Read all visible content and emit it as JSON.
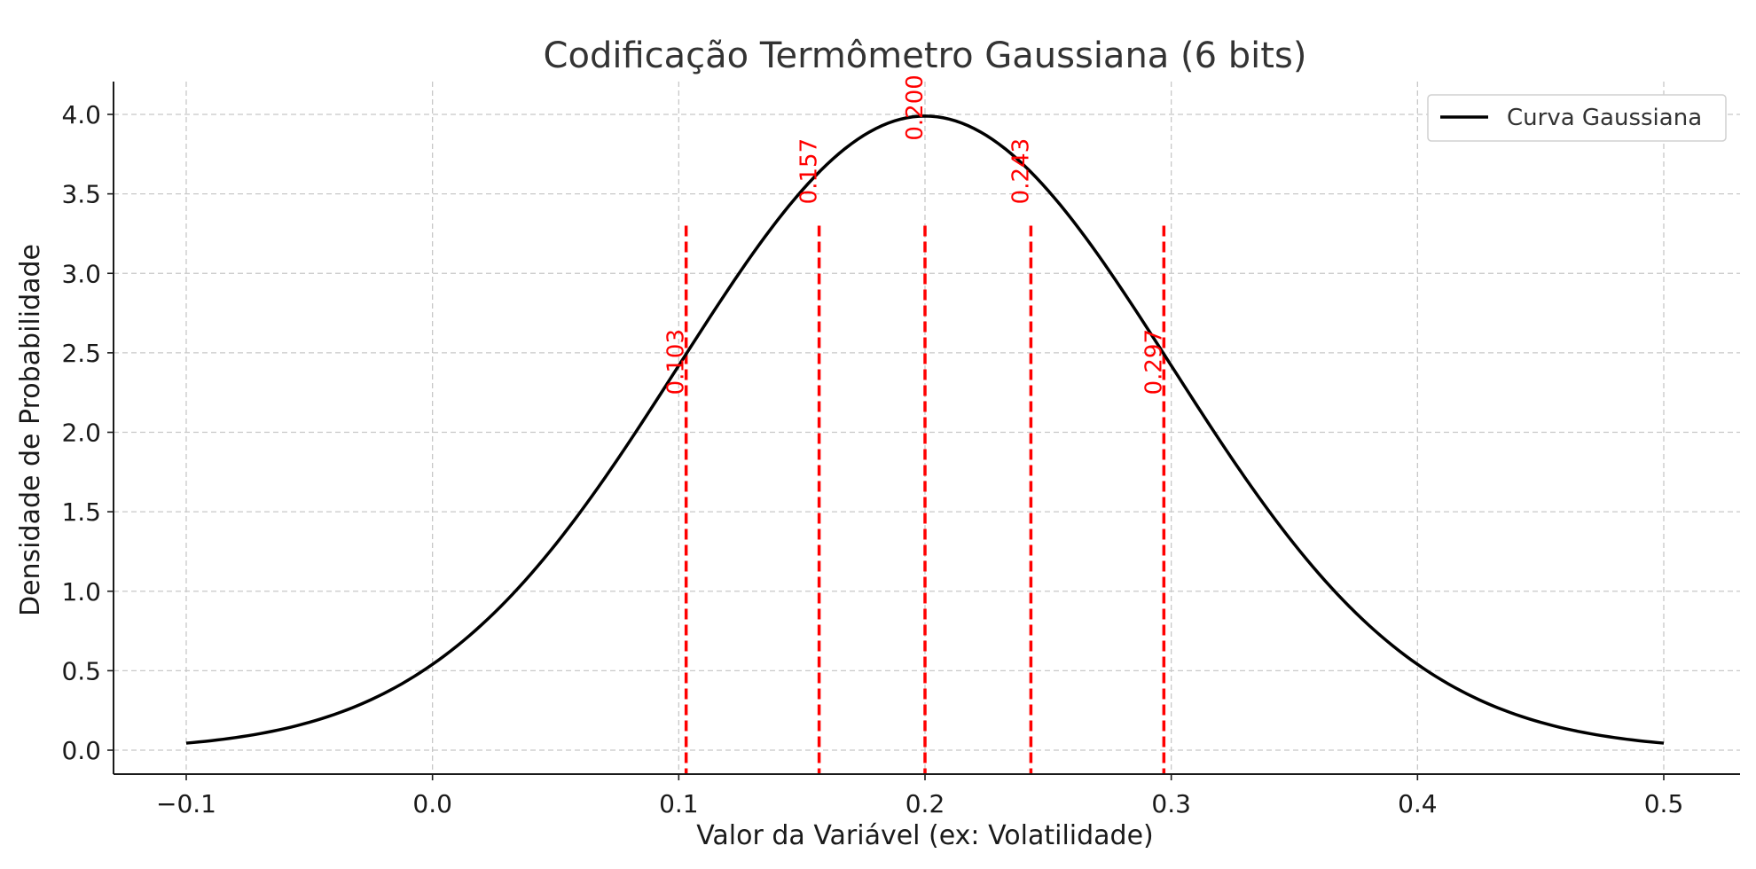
{
  "chart_data": {
    "type": "line",
    "title": "Codificação Termômetro Gaussiana (6 bits)",
    "xlabel": "Valor da Variável (ex: Volatilidade)",
    "ylabel": "Densidade de Probabilidade",
    "xlim": [
      -0.13,
      0.53
    ],
    "ylim": [
      -0.15,
      4.2
    ],
    "grid": true,
    "legend_position": "top-right",
    "x_ticks": [
      -0.1,
      0.0,
      0.1,
      0.2,
      0.3,
      0.4,
      0.5
    ],
    "x_tick_labels": [
      "−0.1",
      "0.0",
      "0.1",
      "0.2",
      "0.3",
      "0.4",
      "0.5"
    ],
    "y_ticks": [
      0.0,
      0.5,
      1.0,
      1.5,
      2.0,
      2.5,
      3.0,
      3.5,
      4.0
    ],
    "y_tick_labels": [
      "0.0",
      "0.5",
      "1.0",
      "1.5",
      "2.0",
      "2.5",
      "3.0",
      "3.5",
      "4.0"
    ],
    "series": [
      {
        "name": "Curva Gaussiana",
        "color": "#000000",
        "x": [
          -0.1,
          -0.075,
          -0.05,
          -0.025,
          0.0,
          0.025,
          0.05,
          0.075,
          0.1,
          0.125,
          0.15,
          0.175,
          0.2,
          0.225,
          0.25,
          0.275,
          0.3,
          0.325,
          0.35,
          0.375,
          0.4,
          0.425,
          0.45,
          0.475,
          0.5
        ],
        "y": [
          0.04,
          0.09,
          0.18,
          0.32,
          0.54,
          0.86,
          1.3,
          1.83,
          2.42,
          3.01,
          3.52,
          3.87,
          3.99,
          3.87,
          3.52,
          3.01,
          2.42,
          1.83,
          1.3,
          0.86,
          0.54,
          0.32,
          0.18,
          0.09,
          0.04
        ]
      }
    ],
    "thresholds": {
      "color": "#ff0000",
      "line_top_y": 3.3,
      "values": [
        0.103,
        0.157,
        0.2,
        0.243,
        0.297
      ],
      "labels": [
        "0.103",
        "0.157",
        "0.200",
        "0.243",
        "0.297"
      ],
      "label_top_y": [
        2.65,
        3.85,
        4.25,
        3.85,
        2.65
      ]
    }
  }
}
